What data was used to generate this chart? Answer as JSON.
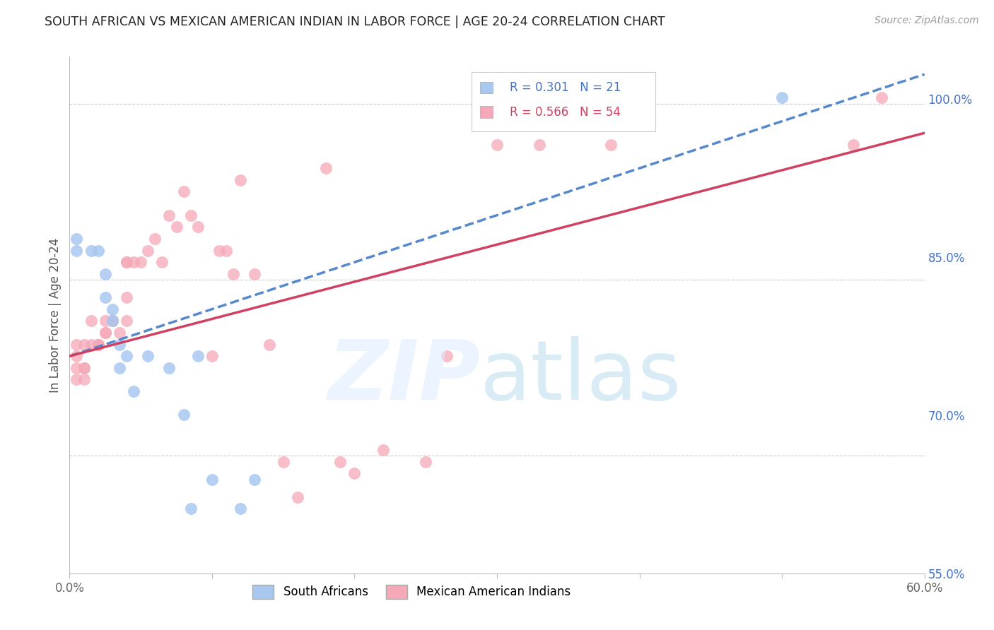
{
  "title": "SOUTH AFRICAN VS MEXICAN AMERICAN INDIAN IN LABOR FORCE | AGE 20-24 CORRELATION CHART",
  "source": "Source: ZipAtlas.com",
  "ylabel": "In Labor Force | Age 20-24",
  "xlim": [
    0.0,
    0.6
  ],
  "ylim": [
    0.6,
    1.04
  ],
  "xticks": [
    0.0,
    0.1,
    0.2,
    0.3,
    0.4,
    0.5,
    0.6
  ],
  "xticklabels": [
    "0.0%",
    "",
    "",
    "",
    "",
    "",
    "60.0%"
  ],
  "yticks_right": [
    1.0,
    0.85,
    0.7,
    0.55
  ],
  "ytick_labels_right": [
    "100.0%",
    "85.0%",
    "70.0%",
    "55.0%"
  ],
  "blue_R": 0.301,
  "blue_N": 21,
  "pink_R": 0.566,
  "pink_N": 54,
  "blue_color": "#a8c8f0",
  "pink_color": "#f5a8b8",
  "blue_line_color": "#5588cc",
  "pink_line_color": "#d04060",
  "legend_blue_label": "South Africans",
  "legend_pink_label": "Mexican American Indians",
  "blue_scatter_x": [
    0.005,
    0.005,
    0.015,
    0.02,
    0.025,
    0.025,
    0.03,
    0.03,
    0.035,
    0.035,
    0.04,
    0.045,
    0.055,
    0.07,
    0.08,
    0.09,
    0.1,
    0.12,
    0.13,
    0.085,
    0.5
  ],
  "blue_scatter_y": [
    0.885,
    0.875,
    0.875,
    0.875,
    0.855,
    0.835,
    0.815,
    0.825,
    0.795,
    0.775,
    0.785,
    0.755,
    0.785,
    0.775,
    0.735,
    0.785,
    0.68,
    0.655,
    0.68,
    0.655,
    1.005
  ],
  "pink_scatter_x": [
    0.005,
    0.005,
    0.005,
    0.005,
    0.01,
    0.01,
    0.01,
    0.01,
    0.015,
    0.015,
    0.02,
    0.02,
    0.02,
    0.025,
    0.025,
    0.025,
    0.03,
    0.03,
    0.03,
    0.035,
    0.04,
    0.04,
    0.04,
    0.04,
    0.045,
    0.05,
    0.055,
    0.06,
    0.065,
    0.07,
    0.075,
    0.08,
    0.085,
    0.09,
    0.1,
    0.105,
    0.11,
    0.115,
    0.12,
    0.13,
    0.14,
    0.15,
    0.16,
    0.18,
    0.19,
    0.2,
    0.22,
    0.25,
    0.265,
    0.3,
    0.33,
    0.38,
    0.55,
    0.57
  ],
  "pink_scatter_y": [
    0.775,
    0.765,
    0.785,
    0.795,
    0.775,
    0.775,
    0.765,
    0.795,
    0.795,
    0.815,
    0.795,
    0.795,
    0.795,
    0.815,
    0.805,
    0.805,
    0.815,
    0.815,
    0.815,
    0.805,
    0.815,
    0.835,
    0.865,
    0.865,
    0.865,
    0.865,
    0.875,
    0.885,
    0.865,
    0.905,
    0.895,
    0.925,
    0.905,
    0.895,
    0.785,
    0.875,
    0.875,
    0.855,
    0.935,
    0.855,
    0.795,
    0.695,
    0.665,
    0.945,
    0.695,
    0.685,
    0.705,
    0.695,
    0.785,
    0.965,
    0.965,
    0.965,
    0.965,
    1.005
  ],
  "blue_line_x0": 0.0,
  "blue_line_y0": 0.785,
  "blue_line_x1": 0.6,
  "blue_line_y1": 1.025,
  "pink_line_x0": 0.0,
  "pink_line_y0": 0.785,
  "pink_line_x1": 0.6,
  "pink_line_y1": 0.975
}
